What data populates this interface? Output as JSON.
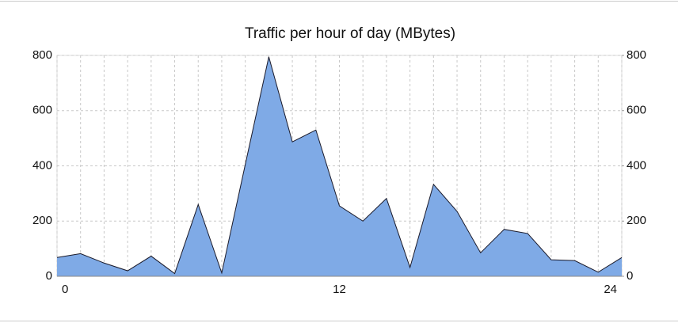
{
  "chart_data": {
    "type": "area",
    "title": "Traffic per hour of day  (MBytes)",
    "x": [
      0,
      1,
      2,
      3,
      4,
      5,
      6,
      7,
      8,
      9,
      10,
      11,
      12,
      13,
      14,
      15,
      16,
      17,
      18,
      19,
      20,
      21,
      22,
      23,
      24
    ],
    "series": [
      {
        "color": "#7faae6",
        "values": [
          68,
          82,
          48,
          20,
          73,
          10,
          260,
          12,
          405,
          795,
          487,
          530,
          255,
          200,
          282,
          32,
          333,
          235,
          85,
          170,
          155,
          60,
          57,
          15,
          68
        ]
      }
    ],
    "xlim": [
      0,
      24
    ],
    "xticks": [
      0,
      12,
      24
    ],
    "ylim": [
      0,
      800
    ],
    "yticks": [
      0,
      200,
      400,
      600,
      800
    ],
    "y2lim": [
      0,
      800
    ],
    "y2ticks": [
      0,
      200,
      400,
      600,
      800
    ],
    "grid": true
  }
}
